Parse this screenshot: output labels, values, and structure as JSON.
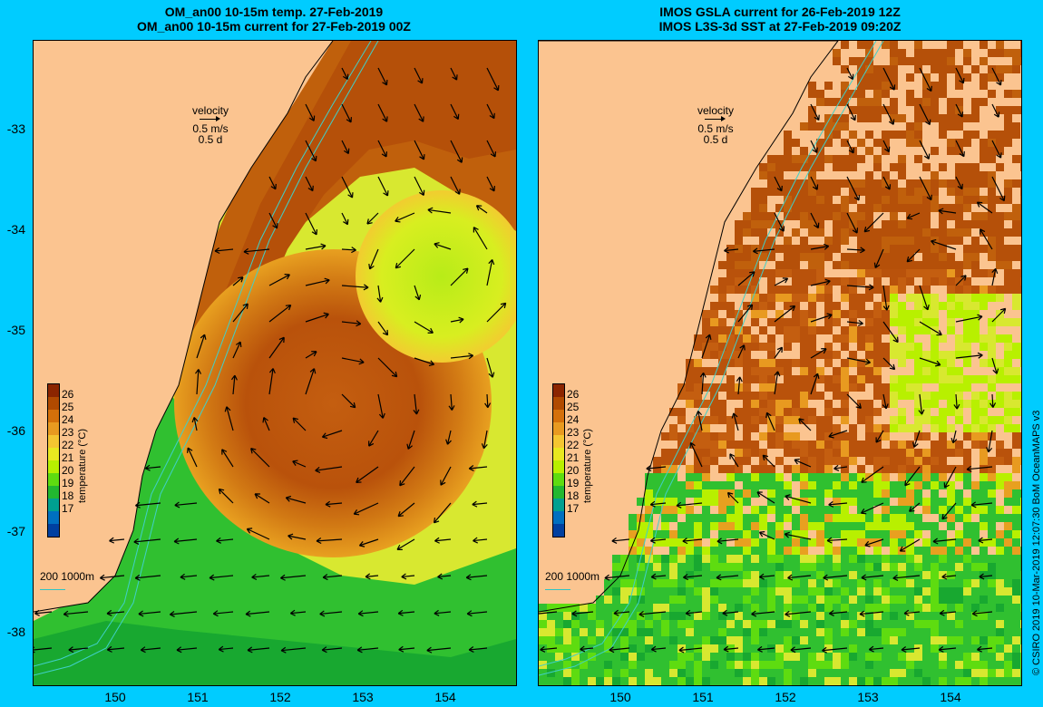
{
  "left": {
    "title_line1": "OM_an00 10-15m temp. 27-Feb-2019",
    "title_line2": "OM_an00 10-15m current for 27-Feb-2019 00Z"
  },
  "right": {
    "title_line1": "IMOS GSLA current for 26-Feb-2019 12Z",
    "title_line2": "IMOS L3S-3d SST at 27-Feb-2019 09:20Z"
  },
  "axes": {
    "y_ticks": [
      "-33",
      "-34",
      "-35",
      "-36",
      "-37",
      "-38"
    ],
    "x_ticks": [
      "150",
      "151",
      "152",
      "153",
      "154"
    ]
  },
  "velocity_legend": {
    "title": "velocity",
    "speed": "0.5 m/s",
    "duration": "0.5 d"
  },
  "isobath_legend": "200  1000m",
  "colorbar": {
    "ticks": [
      "26",
      "25",
      "24",
      "23",
      "22",
      "21",
      "20",
      "19",
      "18",
      "17"
    ],
    "label": "temperature (°C)",
    "colors": [
      "#8b2500",
      "#b04a00",
      "#d4700a",
      "#e89a20",
      "#f4c631",
      "#e8e820",
      "#b8f000",
      "#5edc10",
      "#22b830",
      "#00a090",
      "#0070c0",
      "#0040a0"
    ]
  },
  "credit": "© CSIRO 2019  10-Mar-2019 12:07:30 BoM OceanMAPS v3"
}
